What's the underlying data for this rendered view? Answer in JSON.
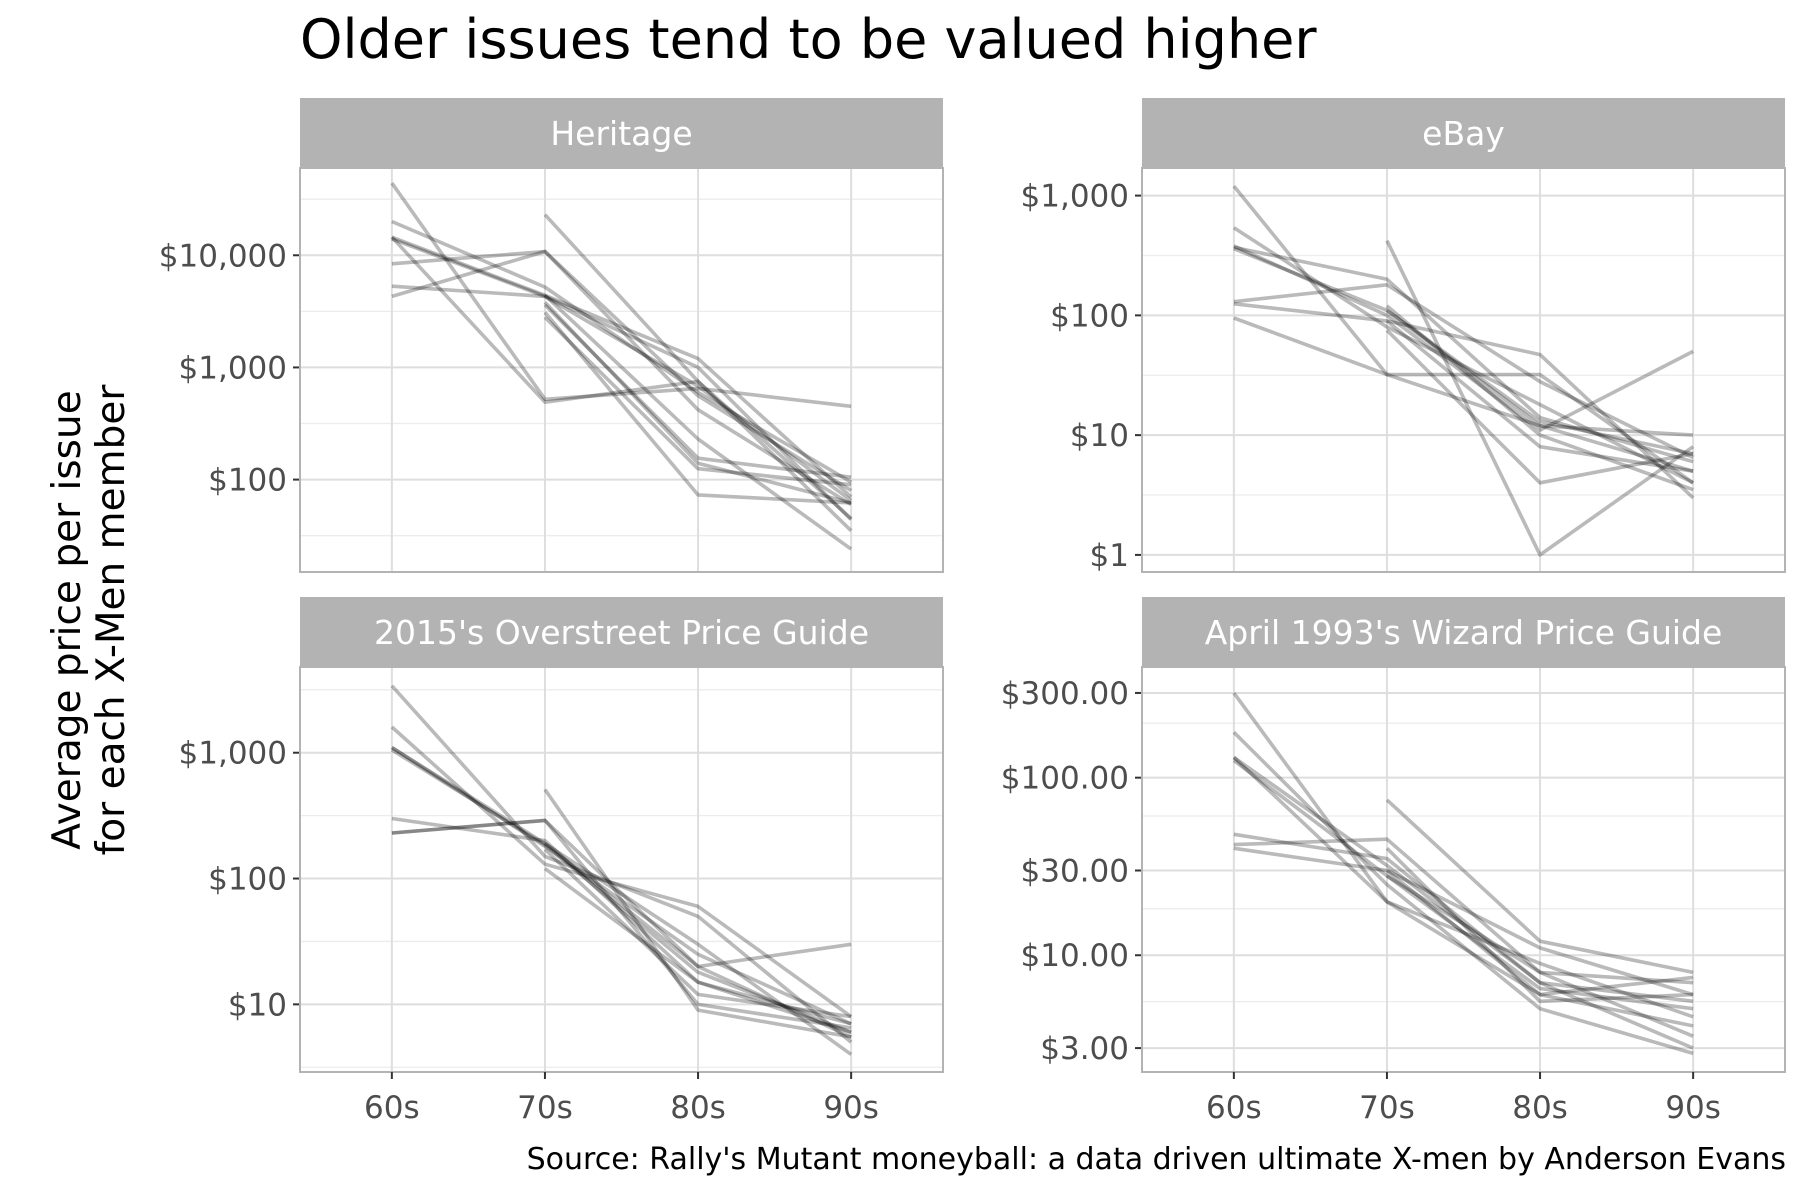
{
  "title": "Older issues tend to be valued higher",
  "ylabel_lines": [
    "Average price per issue",
    "for each X-Men member"
  ],
  "caption": "Source: Rally's Mutant moneyball: a data driven ultimate X-men by Anderson Evans",
  "colors": {
    "strip": "#b3b3b3",
    "grid_major": "#dedede",
    "grid_minor": "#ececec",
    "line": "#000000"
  },
  "chart_data": [
    {
      "type": "line",
      "facet": "Heritage",
      "x_categories": [
        "60s",
        "70s",
        "80s",
        "90s"
      ],
      "y_scale": "log",
      "ylim": [
        15,
        60000
      ],
      "y_ticks": [
        {
          "value": 100,
          "label": "$100"
        },
        {
          "value": 1000,
          "label": "$1,000"
        },
        {
          "value": 10000,
          "label": "$10,000"
        }
      ],
      "series": [
        {
          "values": [
            14500,
            4400,
            1200,
            70
          ]
        },
        {
          "values": [
            14000,
            4300,
            1000,
            44
          ]
        },
        {
          "values": [
            44000,
            520,
            650,
            450
          ]
        },
        {
          "values": [
            20000,
            5200,
            600,
            95
          ]
        },
        {
          "values": [
            8400,
            10800,
            560,
            80
          ]
        },
        {
          "values": [
            5300,
            4300,
            680,
            65
          ]
        },
        {
          "values": [
            4300,
            10800,
            420,
            60
          ]
        },
        {
          "values": [
            14500,
            490,
            750,
            35
          ]
        },
        {
          "values": [
            null,
            23000,
            750,
            45
          ]
        },
        {
          "values": [
            null,
            4400,
            230,
            24
          ]
        },
        {
          "values": [
            null,
            3800,
            140,
            62
          ]
        },
        {
          "values": [
            null,
            3100,
            73,
            62
          ]
        },
        {
          "values": [
            null,
            2800,
            125,
            90
          ]
        },
        {
          "values": [
            null,
            3600,
            155,
            105
          ]
        }
      ]
    },
    {
      "type": "line",
      "facet": "eBay",
      "x_categories": [
        "60s",
        "70s",
        "80s",
        "90s"
      ],
      "y_scale": "log",
      "ylim": [
        0.72,
        1700
      ],
      "y_ticks": [
        {
          "value": 1,
          "label": "$1"
        },
        {
          "value": 10,
          "label": "$10"
        },
        {
          "value": 100,
          "label": "$100"
        },
        {
          "value": 1000,
          "label": "$1,000"
        }
      ],
      "series": [
        {
          "values": [
            370,
            200,
            14,
            6
          ]
        },
        {
          "values": [
            360,
            110,
            13,
            7
          ]
        },
        {
          "values": [
            1200,
            32,
            12,
            5
          ]
        },
        {
          "values": [
            540,
            80,
            18,
            4
          ]
        },
        {
          "values": [
            130,
            180,
            28,
            6.5
          ]
        },
        {
          "values": [
            95,
            32,
            32,
            4
          ]
        },
        {
          "values": [
            125,
            90,
            47,
            3
          ]
        },
        {
          "values": [
            380,
            100,
            11,
            50
          ]
        },
        {
          "values": [
            null,
            420,
            1,
            8
          ]
        },
        {
          "values": [
            null,
            120,
            10,
            3.5
          ]
        },
        {
          "values": [
            null,
            75,
            4,
            7
          ]
        },
        {
          "values": [
            null,
            90,
            8,
            5
          ]
        },
        {
          "values": [
            null,
            110,
            12,
            10
          ]
        }
      ]
    },
    {
      "type": "line",
      "facet": "2015's Overstreet Price Guide",
      "x_categories": [
        "60s",
        "70s",
        "80s",
        "90s"
      ],
      "y_scale": "log",
      "ylim": [
        2.9,
        4800
      ],
      "y_ticks": [
        {
          "value": 10,
          "label": "$10"
        },
        {
          "value": 100,
          "label": "$100"
        },
        {
          "value": 1000,
          "label": "$1,000"
        }
      ],
      "series": [
        {
          "values": [
            1100,
            180,
            25,
            7
          ]
        },
        {
          "values": [
            1050,
            185,
            18,
            6
          ]
        },
        {
          "values": [
            3400,
            150,
            50,
            5
          ]
        },
        {
          "values": [
            1600,
            130,
            60,
            8
          ]
        },
        {
          "values": [
            230,
            290,
            20,
            5.5
          ]
        },
        {
          "values": [
            300,
            200,
            15,
            6
          ]
        },
        {
          "values": [
            230,
            290,
            10,
            6.5
          ]
        },
        {
          "values": [
            1100,
            190,
            30,
            4
          ]
        },
        {
          "values": [
            null,
            510,
            9,
            5.5
          ]
        },
        {
          "values": [
            null,
            170,
            12,
            8
          ]
        },
        {
          "values": [
            null,
            120,
            15,
            7
          ]
        },
        {
          "values": [
            null,
            190,
            20,
            30
          ]
        }
      ]
    },
    {
      "type": "line",
      "facet": "April 1993's Wizard Price Guide",
      "x_categories": [
        "60s",
        "70s",
        "80s",
        "90s"
      ],
      "y_scale": "log",
      "ylim": [
        2.2,
        420
      ],
      "y_ticks": [
        {
          "value": 3,
          "label": "$3.00"
        },
        {
          "value": 10,
          "label": "$10.00"
        },
        {
          "value": 30,
          "label": "$30.00"
        },
        {
          "value": 100,
          "label": "$100.00"
        },
        {
          "value": 300,
          "label": "$300.00"
        }
      ],
      "series": [
        {
          "values": [
            130,
            32,
            7,
            3
          ]
        },
        {
          "values": [
            125,
            28,
            8,
            3.5
          ]
        },
        {
          "values": [
            300,
            20,
            6,
            4
          ]
        },
        {
          "values": [
            180,
            25,
            5,
            2.8
          ]
        },
        {
          "values": [
            42,
            45,
            8,
            7
          ]
        },
        {
          "values": [
            48,
            35,
            7,
            5.5
          ]
        },
        {
          "values": [
            40,
            30,
            11,
            6
          ]
        },
        {
          "values": [
            130,
            20,
            9,
            4.5
          ]
        },
        {
          "values": [
            null,
            75,
            12,
            8
          ]
        },
        {
          "values": [
            null,
            28,
            6.5,
            5
          ]
        },
        {
          "values": [
            null,
            40,
            5.5,
            6
          ]
        },
        {
          "values": [
            null,
            30,
            6,
            7.5
          ]
        }
      ]
    }
  ]
}
